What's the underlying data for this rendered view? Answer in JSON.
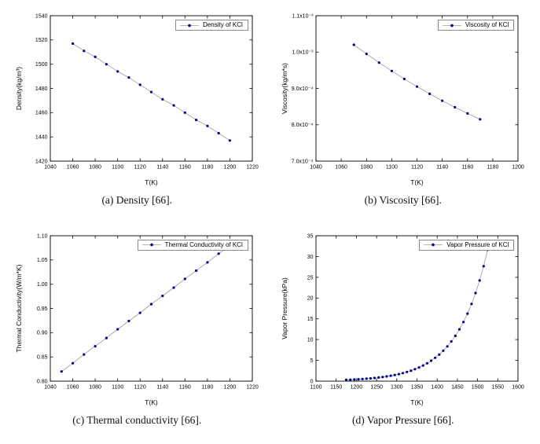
{
  "figure": {
    "captions": {
      "a": "(a) Density [66].",
      "b": "(b) Viscosity [66].",
      "c": "(c) Thermal conductivity [66].",
      "d": "(d) Vapor Pressure [66]."
    },
    "colors": {
      "line": "#9a9a9a",
      "marker": "#00008b",
      "axis": "#000000"
    }
  },
  "chart_data": [
    {
      "id": "density",
      "type": "line",
      "legend": "Density of KCl",
      "xlabel": "T(K)",
      "ylabel": "Density(kg/m³)",
      "xlim": [
        1040,
        1220
      ],
      "ylim": [
        1420,
        1540
      ],
      "xticks": [
        1040,
        1060,
        1080,
        1100,
        1120,
        1140,
        1160,
        1180,
        1200,
        1220
      ],
      "xtick_labels": [
        "1040",
        "1060",
        "1080",
        "1100",
        "1120",
        "1140",
        "1160",
        "1180",
        "1200",
        "1220"
      ],
      "yticks": [
        1420,
        1440,
        1460,
        1480,
        1500,
        1520,
        1540
      ],
      "ytick_labels": [
        "1420",
        "1440",
        "1460",
        "1480",
        "1500",
        "1520",
        "1540"
      ],
      "x": [
        1060,
        1070,
        1080,
        1090,
        1100,
        1110,
        1120,
        1130,
        1140,
        1150,
        1160,
        1170,
        1180,
        1190,
        1200
      ],
      "y": [
        1517,
        1511,
        1506,
        1500,
        1494,
        1489,
        1483,
        1477,
        1471,
        1466,
        1460,
        1454,
        1449,
        1443,
        1437
      ],
      "line_color": "#9a9a9a",
      "marker_color": "#00008b"
    },
    {
      "id": "viscosity",
      "type": "line",
      "legend": "Viscosity of KCl",
      "xlabel": "T(K)",
      "ylabel": "Viscosity(kg/m*s)",
      "xlim": [
        1040,
        1200
      ],
      "ylim": [
        0.0007,
        0.0011
      ],
      "xticks": [
        1040,
        1060,
        1080,
        1100,
        1120,
        1140,
        1160,
        1180,
        1200
      ],
      "xtick_labels": [
        "1040",
        "1060",
        "1080",
        "1100",
        "1120",
        "1140",
        "1160",
        "1180",
        "1200"
      ],
      "yticks": [
        0.0007,
        0.0008,
        0.0009,
        0.001,
        0.0011
      ],
      "ytick_labels": [
        "7.0x10⁻⁴",
        "8.0x10⁻⁴",
        "9.0x10⁻⁴",
        "1.0x10⁻³",
        "1.1x10⁻³"
      ],
      "x": [
        1070,
        1080,
        1090,
        1100,
        1110,
        1120,
        1130,
        1140,
        1150,
        1160,
        1170
      ],
      "y": [
        0.00102,
        0.000995,
        0.000971,
        0.000948,
        0.000926,
        0.000905,
        0.000885,
        0.000866,
        0.000848,
        0.000831,
        0.000815
      ],
      "line_color": "#9a9a9a",
      "marker_color": "#00008b"
    },
    {
      "id": "thermal-conductivity",
      "type": "line",
      "legend": "Thermal Conductivity of KCl",
      "xlabel": "T(K)",
      "ylabel": "Thermal Conductivity(W/m*K)",
      "xlim": [
        1040,
        1220
      ],
      "ylim": [
        0.8,
        1.1
      ],
      "xticks": [
        1040,
        1060,
        1080,
        1100,
        1120,
        1140,
        1160,
        1180,
        1200,
        1220
      ],
      "xtick_labels": [
        "1040",
        "1060",
        "1080",
        "1100",
        "1120",
        "1140",
        "1160",
        "1180",
        "1200",
        "1220"
      ],
      "yticks": [
        0.8,
        0.85,
        0.9,
        0.95,
        1.0,
        1.05,
        1.1
      ],
      "ytick_labels": [
        "0.80",
        "0.85",
        "0.90",
        "0.95",
        "1.00",
        "1.05",
        "1.10"
      ],
      "x": [
        1050,
        1060,
        1070,
        1080,
        1090,
        1100,
        1110,
        1120,
        1130,
        1140,
        1150,
        1160,
        1170,
        1180,
        1190,
        1200
      ],
      "y": [
        0.82,
        0.837,
        0.855,
        0.872,
        0.889,
        0.907,
        0.924,
        0.941,
        0.959,
        0.976,
        0.993,
        1.011,
        1.028,
        1.045,
        1.063,
        1.08
      ],
      "line_color": "#9a9a9a",
      "marker_color": "#00008b"
    },
    {
      "id": "vapor-pressure",
      "type": "line",
      "legend": "Vapor Pressure of KCl",
      "xlabel": "T(K)",
      "ylabel": "Vapor Pressure(kPa)",
      "xlim": [
        1100,
        1600
      ],
      "ylim": [
        0,
        35
      ],
      "xticks": [
        1100,
        1150,
        1200,
        1250,
        1300,
        1350,
        1400,
        1450,
        1500,
        1550,
        1600
      ],
      "xtick_labels": [
        "1100",
        "1150",
        "1200",
        "1250",
        "1300",
        "1350",
        "1400",
        "1450",
        "1500",
        "1550",
        "1600"
      ],
      "yticks": [
        0,
        5,
        10,
        15,
        20,
        25,
        30,
        35
      ],
      "ytick_labels": [
        "0",
        "5",
        "10",
        "15",
        "20",
        "25",
        "30",
        "35"
      ],
      "x": [
        1175,
        1185,
        1195,
        1205,
        1215,
        1225,
        1235,
        1245,
        1255,
        1265,
        1275,
        1285,
        1295,
        1305,
        1315,
        1325,
        1335,
        1345,
        1355,
        1365,
        1375,
        1385,
        1395,
        1405,
        1415,
        1425,
        1435,
        1445,
        1455,
        1465,
        1475,
        1485,
        1495,
        1505,
        1515,
        1525
      ],
      "y": [
        0.3,
        0.34,
        0.39,
        0.45,
        0.51,
        0.58,
        0.67,
        0.76,
        0.87,
        0.99,
        1.14,
        1.3,
        1.48,
        1.69,
        1.93,
        2.21,
        2.52,
        2.88,
        3.29,
        3.76,
        4.3,
        4.91,
        5.61,
        6.4,
        7.32,
        8.36,
        9.55,
        10.9,
        12.46,
        14.23,
        16.25,
        18.57,
        21.21,
        24.23,
        27.67,
        31.61
      ],
      "line_color": "#9a9a9a",
      "marker_color": "#00008b"
    }
  ]
}
